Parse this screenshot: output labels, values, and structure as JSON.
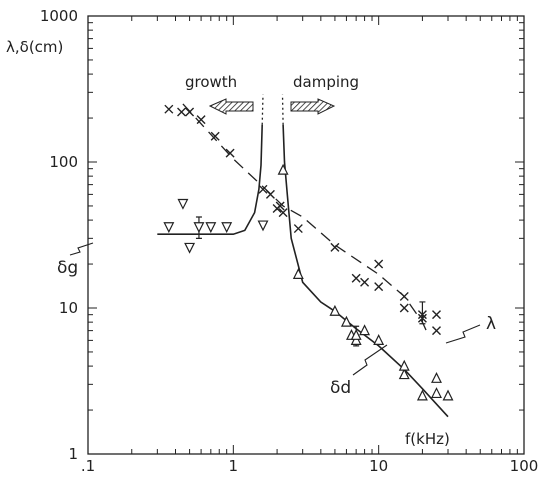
{
  "chart_data": {
    "type": "scatter",
    "xscale": "log",
    "yscale": "log",
    "xlim": [
      0.1,
      100
    ],
    "ylim": [
      1,
      1000
    ],
    "grid": false,
    "x_tick_labels": [
      ".1",
      "1",
      "10",
      "100"
    ],
    "y_tick_labels": [
      "1",
      "10",
      "100",
      "1000"
    ],
    "xlabel": "f(kHz)",
    "ylabel": "λ,δ(cm)",
    "annotations": {
      "growth": "growth",
      "damping": "damping",
      "delta_g": "δg",
      "delta_d": "δd",
      "lambda": "λ"
    },
    "series": [
      {
        "name": "λ",
        "marker": "x",
        "points": [
          [
            0.36,
            230
          ],
          [
            0.44,
            220
          ],
          [
            0.5,
            220
          ],
          [
            0.6,
            195
          ],
          [
            0.75,
            150
          ],
          [
            0.95,
            115
          ],
          [
            1.6,
            65
          ],
          [
            1.8,
            60
          ],
          [
            2.0,
            48
          ],
          [
            2.1,
            50
          ],
          [
            2.2,
            45
          ],
          [
            2.8,
            35
          ],
          [
            5.0,
            26
          ],
          [
            7.0,
            16
          ],
          [
            8.0,
            15
          ],
          [
            10,
            20
          ],
          [
            10,
            14
          ],
          [
            15,
            12
          ],
          [
            15,
            10
          ],
          [
            20,
            9
          ],
          [
            20,
            8.5
          ],
          [
            25,
            9
          ],
          [
            25,
            7
          ]
        ]
      },
      {
        "name": "δg",
        "marker": "triangle-down",
        "points": [
          [
            0.36,
            36
          ],
          [
            0.45,
            52
          ],
          [
            0.5,
            26
          ],
          [
            0.58,
            36
          ],
          [
            0.7,
            36
          ],
          [
            0.9,
            36
          ],
          [
            1.6,
            37
          ]
        ]
      },
      {
        "name": "δd",
        "marker": "triangle-up",
        "points": [
          [
            2.2,
            88
          ],
          [
            2.8,
            17
          ],
          [
            5,
            9.5
          ],
          [
            6,
            8
          ],
          [
            6.5,
            6.5
          ],
          [
            7,
            6
          ],
          [
            7,
            6.5
          ],
          [
            8,
            7
          ],
          [
            10,
            6
          ],
          [
            15,
            3.5
          ],
          [
            15,
            4
          ],
          [
            20,
            2.5
          ],
          [
            25,
            3.3
          ],
          [
            25,
            2.6
          ],
          [
            30,
            2.5
          ]
        ]
      },
      {
        "name": "λ fit",
        "style": "dashed",
        "points": [
          [
            0.45,
            250
          ],
          [
            1.0,
            105
          ],
          [
            1.7,
            64
          ],
          [
            2.2,
            50
          ],
          [
            3.0,
            42
          ],
          [
            5.0,
            27
          ],
          [
            10,
            17
          ],
          [
            15,
            12
          ],
          [
            20,
            8
          ],
          [
            22,
            6.5
          ]
        ]
      },
      {
        "name": "δg fit",
        "style": "solid",
        "points": [
          [
            0.3,
            32
          ],
          [
            0.6,
            32
          ],
          [
            1.0,
            32
          ],
          [
            1.2,
            34
          ],
          [
            1.4,
            45
          ],
          [
            1.5,
            65
          ],
          [
            1.55,
            95
          ],
          [
            1.58,
            180
          ]
        ]
      },
      {
        "name": "δd fit",
        "style": "solid",
        "points": [
          [
            2.2,
            180
          ],
          [
            2.25,
            100
          ],
          [
            2.35,
            60
          ],
          [
            2.5,
            30
          ],
          [
            3.0,
            15
          ],
          [
            4.0,
            11
          ],
          [
            5.0,
            9.5
          ],
          [
            7.0,
            7.2
          ],
          [
            10,
            5.5
          ],
          [
            15,
            3.8
          ],
          [
            20,
            2.8
          ],
          [
            30,
            1.8
          ]
        ]
      },
      {
        "name": "δg fit continuation",
        "style": "dotted",
        "points": [
          [
            1.58,
            180
          ],
          [
            1.6,
            290
          ]
        ]
      },
      {
        "name": "δd fit continuation",
        "style": "dotted",
        "points": [
          [
            2.2,
            180
          ],
          [
            2.18,
            290
          ]
        ]
      }
    ],
    "error_bars": [
      {
        "x": 0.58,
        "y_low": 30,
        "y_high": 42
      },
      {
        "x": 7.0,
        "y_low": 5.5,
        "y_high": 7.5
      },
      {
        "x": 20,
        "y_low": 7.8,
        "y_high": 11
      }
    ],
    "arrows": [
      {
        "label_key": "growth",
        "direction": "left"
      },
      {
        "label_key": "damping",
        "direction": "right"
      }
    ]
  }
}
